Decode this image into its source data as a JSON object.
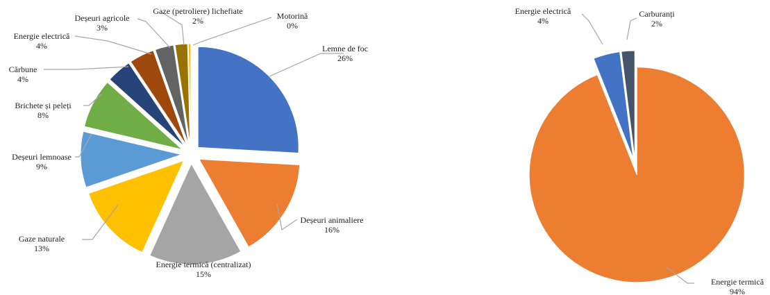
{
  "chart_data": [
    {
      "type": "pie",
      "title": "",
      "slices": [
        {
          "label": "Lemne de foc",
          "pct_label": "26%",
          "value": 26,
          "color": "#4472C4"
        },
        {
          "label": "Deșeuri animaliere",
          "pct_label": "16%",
          "value": 16,
          "color": "#ED7D31"
        },
        {
          "label": "Energie termică (centralizat)",
          "pct_label": "15%",
          "value": 15,
          "color": "#A5A5A5"
        },
        {
          "label": "Gaze naturale",
          "pct_label": "13%",
          "value": 13,
          "color": "#FFC000"
        },
        {
          "label": "Deșeuri lemnoase",
          "pct_label": "9%",
          "value": 9,
          "color": "#5B9BD5"
        },
        {
          "label": "Brichete și peleți",
          "pct_label": "8%",
          "value": 8,
          "color": "#70AD47"
        },
        {
          "label": "Cărbune",
          "pct_label": "4%",
          "value": 4,
          "color": "#264478"
        },
        {
          "label": "Energie electrică",
          "pct_label": "4%",
          "value": 4,
          "color": "#9E480E"
        },
        {
          "label": "Deșeuri agricole",
          "pct_label": "3%",
          "value": 3,
          "color": "#636363"
        },
        {
          "label": "Gaze (petroliere) lichefiate",
          "pct_label": "2%",
          "value": 2,
          "color": "#997300"
        },
        {
          "label": "Motorină",
          "pct_label": "0%",
          "value": 0.4,
          "color": "#FFC000"
        }
      ]
    },
    {
      "type": "pie",
      "title": "",
      "slices": [
        {
          "label": "Energie termică",
          "pct_label": "94%",
          "value": 94,
          "color": "#ED7D31"
        },
        {
          "label": "Energie electrică",
          "pct_label": "4%",
          "value": 4,
          "color": "#4472C4"
        },
        {
          "label": "Carburanți",
          "pct_label": "2%",
          "value": 2,
          "color": "#44546A"
        }
      ]
    }
  ]
}
